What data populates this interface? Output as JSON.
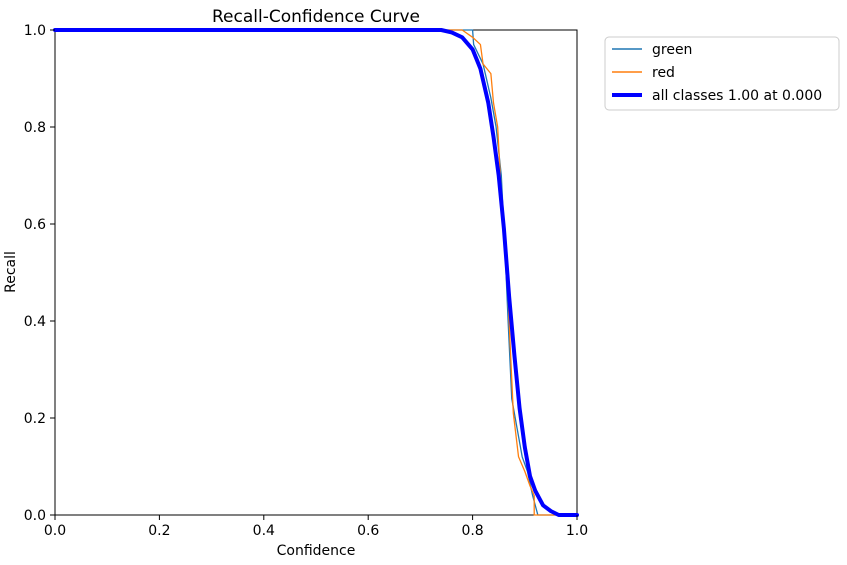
{
  "chart_data": {
    "type": "line",
    "title": "Recall-Confidence Curve",
    "xlabel": "Confidence",
    "ylabel": "Recall",
    "xlim": [
      0.0,
      1.0
    ],
    "ylim": [
      0.0,
      1.0
    ],
    "xticks": [
      "0.0",
      "0.2",
      "0.4",
      "0.6",
      "0.8",
      "1.0"
    ],
    "yticks": [
      "0.0",
      "0.2",
      "0.4",
      "0.6",
      "0.8",
      "1.0"
    ],
    "grid": false,
    "legend_position": "outside-top-right",
    "series": [
      {
        "name": "green",
        "color": "#1f77b4",
        "width": "thin",
        "points": [
          [
            0.0,
            1.0
          ],
          [
            0.8,
            1.0
          ],
          [
            0.802,
            0.97
          ],
          [
            0.82,
            0.93
          ],
          [
            0.835,
            0.86
          ],
          [
            0.845,
            0.8
          ],
          [
            0.855,
            0.7
          ],
          [
            0.862,
            0.55
          ],
          [
            0.868,
            0.4
          ],
          [
            0.875,
            0.24
          ],
          [
            0.885,
            0.18
          ],
          [
            0.895,
            0.12
          ],
          [
            0.905,
            0.09
          ],
          [
            0.915,
            0.04
          ],
          [
            0.925,
            0.0
          ],
          [
            1.0,
            0.0
          ]
        ]
      },
      {
        "name": "red",
        "color": "#ff7f0e",
        "width": "thin",
        "points": [
          [
            0.0,
            1.0
          ],
          [
            0.78,
            1.0
          ],
          [
            0.8,
            0.985
          ],
          [
            0.815,
            0.97
          ],
          [
            0.82,
            0.93
          ],
          [
            0.835,
            0.91
          ],
          [
            0.84,
            0.85
          ],
          [
            0.848,
            0.8
          ],
          [
            0.852,
            0.72
          ],
          [
            0.858,
            0.6
          ],
          [
            0.865,
            0.52
          ],
          [
            0.872,
            0.35
          ],
          [
            0.878,
            0.21
          ],
          [
            0.888,
            0.12
          ],
          [
            0.9,
            0.09
          ],
          [
            0.91,
            0.06
          ],
          [
            0.918,
            0.04
          ],
          [
            0.918,
            0.0
          ],
          [
            1.0,
            0.0
          ]
        ]
      },
      {
        "name": "all classes 1.00 at 0.000",
        "color": "#0000ff",
        "width": "thick",
        "points": [
          [
            0.0,
            1.0
          ],
          [
            0.74,
            1.0
          ],
          [
            0.76,
            0.995
          ],
          [
            0.78,
            0.985
          ],
          [
            0.8,
            0.96
          ],
          [
            0.815,
            0.92
          ],
          [
            0.83,
            0.85
          ],
          [
            0.84,
            0.78
          ],
          [
            0.85,
            0.7
          ],
          [
            0.86,
            0.59
          ],
          [
            0.87,
            0.45
          ],
          [
            0.88,
            0.33
          ],
          [
            0.89,
            0.22
          ],
          [
            0.9,
            0.14
          ],
          [
            0.91,
            0.08
          ],
          [
            0.92,
            0.05
          ],
          [
            0.935,
            0.02
          ],
          [
            0.95,
            0.008
          ],
          [
            0.965,
            0.0
          ],
          [
            1.0,
            0.0
          ]
        ]
      }
    ]
  }
}
